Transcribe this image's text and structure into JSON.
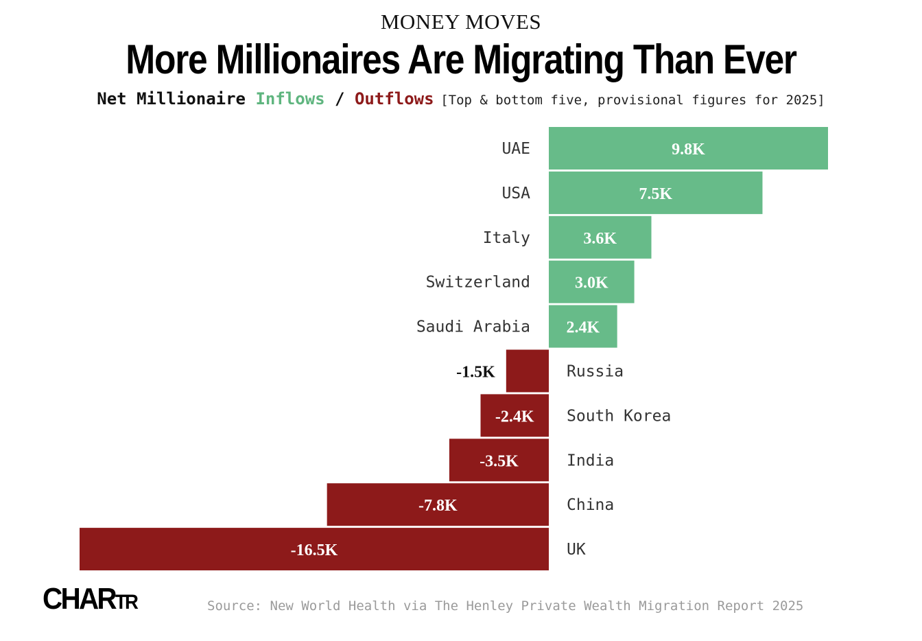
{
  "header": {
    "kicker": "MONEY MOVES",
    "title": "More Millionaires Are Migrating Than Ever",
    "subtitle_prefix": "Net Millionaire ",
    "subtitle_inflows": "Inflows",
    "subtitle_sep": " / ",
    "subtitle_outflows": "Outflows",
    "subtitle_note": "[Top & bottom five, provisional figures for 2025]"
  },
  "footer": {
    "logo_main": "CHAR",
    "logo_small": "TR",
    "source": "Source: New World Health via The Henley Private Wealth Migration Report 2025"
  },
  "colors": {
    "inflow": "#67bb89",
    "outflow": "#8d1a1a",
    "inflow_text": "#5fb57f",
    "outflow_text": "#8d1a1a"
  },
  "chart_data": {
    "type": "bar",
    "orientation": "horizontal",
    "categories": [
      "UAE",
      "USA",
      "Italy",
      "Switzerland",
      "Saudi Arabia",
      "Russia",
      "South Korea",
      "India",
      "China",
      "UK"
    ],
    "values": [
      9800,
      7500,
      3600,
      3000,
      2400,
      -1500,
      -2400,
      -3500,
      -7800,
      -16500
    ],
    "labels": [
      "9.8K",
      "7.5K",
      "3.6K",
      "3.0K",
      "2.4K",
      "-1.5K",
      "-2.4K",
      "-3.5K",
      "-7.8K",
      "-16.5K"
    ],
    "xlim": [
      -16500,
      9800
    ],
    "grid": false,
    "legend": "none"
  }
}
